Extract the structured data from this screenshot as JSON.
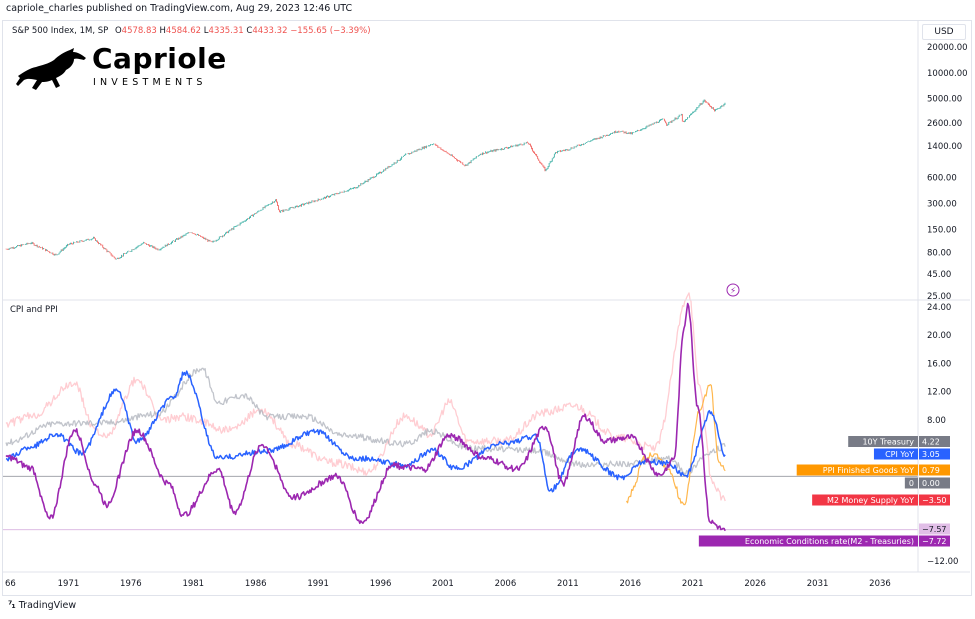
{
  "header": {
    "published_line": "capriole_charles published on TradingView.com, Aug 29, 2023 12:46 UTC",
    "currency_button": "USD"
  },
  "symbol": {
    "name": "S&P 500 Index, 1M, SP",
    "o_label": "O",
    "o_value": "4578.83",
    "h_label": "H",
    "h_value": "4584.62",
    "l_label": "L",
    "l_value": "4335.31",
    "c_label": "C",
    "c_value": "4433.32",
    "change": "−155.65 (−3.39%)"
  },
  "logo": {
    "title": "Capriole",
    "subtitle": "INVESTMENTS"
  },
  "lower_pane": {
    "title": "CPI and PPI"
  },
  "footer": {
    "brand": "TradingView"
  },
  "colors": {
    "up_candle": "#26a69a",
    "down_candle": "#ef5350",
    "treasury": "#b2b5be",
    "cpi": "#2962ff",
    "ppi": "#ffb74d",
    "m2": "#ffcdd2",
    "econ": "#9c27b0",
    "zero": "#9598a1"
  },
  "chart_data": [
    {
      "type": "line",
      "title": "S&P 500 Index, 1M, SP",
      "y_scale": "log",
      "y_ticks": [
        "20000.00",
        "10000.00",
        "5000.00",
        "2600.00",
        "1400.00",
        "600.00",
        "300.00",
        "150.00",
        "80.00",
        "45.00",
        "25.00"
      ],
      "y_tick_values": [
        20000,
        10000,
        5000,
        2600,
        1400,
        600,
        300,
        150,
        80,
        45,
        25
      ],
      "series": [
        {
          "name": "S&P 500",
          "x": [
            1966,
            1968,
            1970,
            1971,
            1973,
            1974.8,
            1977,
            1978.2,
            1980.8,
            1982.5,
            1985,
            1987.6,
            1987.9,
            1990.7,
            1994,
            1996,
            1998,
            2000.2,
            2002.8,
            2004,
            2007.8,
            2009.2,
            2010,
            2011,
            2013,
            2015,
            2016.1,
            2018.7,
            2018.9,
            2020.1,
            2020.2,
            2021.9,
            2022.8,
            2023.6
          ],
          "values": [
            88,
            104,
            75,
            100,
            118,
            67,
            104,
            87,
            140,
            105,
            185,
            330,
            240,
            320,
            460,
            690,
            1100,
            1500,
            830,
            1140,
            1530,
            720,
            1180,
            1280,
            1650,
            2100,
            1950,
            2900,
            2500,
            3250,
            2580,
            4770,
            3600,
            4433
          ]
        }
      ]
    },
    {
      "type": "line",
      "title": "CPI and PPI",
      "y_ticks": [
        "24.00",
        "20.00",
        "16.00",
        "12.00",
        "8.00",
        "−12.00"
      ],
      "y_tick_values": [
        24,
        20,
        16,
        12,
        8,
        -12
      ],
      "x_ticks": [
        "66",
        "1971",
        "1976",
        "1981",
        "1986",
        "1991",
        "1996",
        "2001",
        "2006",
        "2011",
        "2016",
        "2021",
        "2026",
        "2031",
        "2036"
      ],
      "x_tick_values": [
        1966,
        1971,
        1976,
        1981,
        1986,
        1991,
        1996,
        2001,
        2006,
        2011,
        2016,
        2021,
        2026,
        2031,
        2036
      ],
      "x_range": [
        1966,
        2038
      ],
      "series": [
        {
          "name": "10Y Treasury",
          "label_value": "4.22",
          "x": [
            1966,
            1970,
            1974,
            1978,
            1981.7,
            1983,
            1985,
            1987,
            1990,
            1993,
            1998,
            2000,
            2003,
            2008,
            2012.5,
            2016,
            2019,
            2020.6,
            2022,
            2023.6
          ],
          "values": [
            4.8,
            7.5,
            7.6,
            8.8,
            15.3,
            10.5,
            11.5,
            8.4,
            8.5,
            5.8,
            4.6,
            6.4,
            4.0,
            3.7,
            1.6,
            1.8,
            2.5,
            0.6,
            3.0,
            4.22
          ]
        },
        {
          "name": "CPI YoY",
          "label_value": "3.05",
          "x": [
            1966,
            1968,
            1970,
            1972,
            1974.9,
            1976.5,
            1979.5,
            1980.3,
            1983,
            1987,
            1990.8,
            1994,
            1998,
            2000.2,
            2002,
            2005.7,
            2008.5,
            2009.6,
            2011.8,
            2015.3,
            2017,
            2019,
            2020.4,
            2022.5,
            2023.6
          ],
          "values": [
            2.5,
            4.2,
            6.0,
            3.3,
            12.2,
            5.0,
            11.3,
            14.7,
            2.6,
            3.6,
            6.3,
            2.6,
            1.6,
            3.7,
            1.1,
            4.7,
            5.6,
            -2.0,
            3.9,
            -0.2,
            2.1,
            1.9,
            0.1,
            9.1,
            3.05
          ]
        },
        {
          "name": "PPI Finished Goods YoY",
          "label_value": "0.79",
          "x": [
            2015.7,
            2016.2,
            2017,
            2018,
            2019,
            2020.3,
            2021.5,
            2022.4,
            2023.1,
            2023.6
          ],
          "values": [
            -3.5,
            -2.0,
            2.5,
            3.2,
            1.0,
            -4.0,
            9.0,
            13.0,
            2.0,
            0.79
          ]
        },
        {
          "name": "M2 Money Supply YoY",
          "label_value": "−3.50",
          "x": [
            1966,
            1968,
            1971.5,
            1973,
            1974,
            1976.5,
            1978.5,
            1980,
            1984,
            1986.5,
            1989,
            1992,
            1995,
            1998,
            2000,
            2001.5,
            2003,
            2006,
            2009,
            2011.5,
            2015,
            2018,
            2020.7,
            2021.5,
            2022.6,
            2023.6
          ],
          "values": [
            7.5,
            8.5,
            13.2,
            7.0,
            5.5,
            13.7,
            8.0,
            8.5,
            6.5,
            9.5,
            4.5,
            2.0,
            0.7,
            8.5,
            6.0,
            10.5,
            5.0,
            5.0,
            9.0,
            10.0,
            5.5,
            4.0,
            26.0,
            13.0,
            -1.0,
            -3.5
          ]
        },
        {
          "name": "Economic Conditions rate(M2 - Treasuries)",
          "label_value": "−7.72",
          "x": [
            1966,
            1968,
            1969.5,
            1971.5,
            1973.3,
            1974,
            1976.5,
            1979,
            1980.2,
            1983,
            1984.3,
            1986.5,
            1989,
            1992.5,
            1994.5,
            1997,
            1999.5,
            2001.5,
            2004.5,
            2007,
            2009.2,
            2010.6,
            2012.3,
            2014,
            2016,
            2018.4,
            2019.5,
            2020.3,
            2020.6,
            2021.4,
            2022.4,
            2023.6
          ],
          "values": [
            2.8,
            1.2,
            -6.0,
            6.5,
            -1.5,
            -4.0,
            6.5,
            -1.0,
            -5.5,
            1.0,
            -5.0,
            4.5,
            -3.0,
            0.0,
            -6.5,
            1.5,
            1.0,
            5.8,
            2.5,
            1.0,
            7.0,
            -1.0,
            8.5,
            5.0,
            5.5,
            0.2,
            2.5,
            21.0,
            24.5,
            10.0,
            -6.5,
            -7.72
          ]
        }
      ],
      "annotations": [
        {
          "label": "0",
          "value": "0.00"
        },
        {
          "label": "",
          "value": "−7.57"
        }
      ]
    }
  ]
}
